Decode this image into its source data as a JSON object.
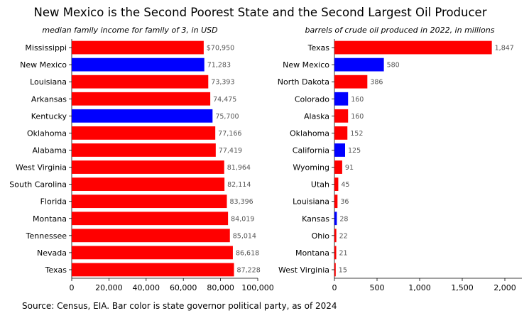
{
  "title": "New Mexico is the Second Poorest State and the Second Largest Oil Producer",
  "source": "Source: Census, EIA. Bar color is state governor political party, as of 2024",
  "colors": {
    "republican": "#ff0000",
    "democrat": "#0000ff"
  },
  "chart_data": [
    {
      "type": "bar",
      "orientation": "horizontal",
      "subtitle": "median family income for family of 3, in USD",
      "categories": [
        "Mississippi",
        "New Mexico",
        "Louisiana",
        "Arkansas",
        "Kentucky",
        "Oklahoma",
        "Alabama",
        "West Virginia",
        "South Carolina",
        "Florida",
        "Montana",
        "Tennessee",
        "Nevada",
        "Texas"
      ],
      "values": [
        70950,
        71283,
        73393,
        74475,
        75700,
        77166,
        77419,
        81964,
        82114,
        83396,
        84019,
        85014,
        86618,
        87228
      ],
      "value_labels": [
        "$70,950",
        "71,283",
        "73,393",
        "74,475",
        "75,700",
        "77,166",
        "77,419",
        "81,964",
        "82,114",
        "83,396",
        "84,019",
        "85,014",
        "86,618",
        "87,228"
      ],
      "party": [
        "R",
        "D",
        "R",
        "R",
        "D",
        "R",
        "R",
        "R",
        "R",
        "R",
        "R",
        "R",
        "R",
        "R"
      ],
      "xlim": [
        0,
        100000
      ],
      "xticks": [
        0,
        20000,
        40000,
        60000,
        80000,
        100000
      ],
      "xtick_labels": [
        "0",
        "20,000",
        "40,000",
        "60,000",
        "80,000",
        "100,000"
      ]
    },
    {
      "type": "bar",
      "orientation": "horizontal",
      "subtitle": "barrels of crude oil produced in 2022, in millions",
      "categories": [
        "Texas",
        "New Mexico",
        "North Dakota",
        "Colorado",
        "Alaska",
        "Oklahoma",
        "California",
        "Wyoming",
        "Utah",
        "Louisiana",
        "Kansas",
        "Ohio",
        "Montana",
        "West Virginia"
      ],
      "values": [
        1847,
        580,
        386,
        160,
        160,
        152,
        125,
        91,
        45,
        36,
        28,
        22,
        21,
        15
      ],
      "value_labels": [
        "1,847",
        "580",
        "386",
        "160",
        "160",
        "152",
        "125",
        "91",
        "45",
        "36",
        "28",
        "22",
        "21",
        "15"
      ],
      "party": [
        "R",
        "D",
        "R",
        "D",
        "R",
        "R",
        "D",
        "R",
        "R",
        "R",
        "D",
        "R",
        "R",
        "R"
      ],
      "xlim": [
        0,
        2200
      ],
      "xticks": [
        0,
        500,
        1000,
        1500,
        2000
      ],
      "xtick_labels": [
        "0",
        "500",
        "1,000",
        "1,500",
        "2,000"
      ]
    }
  ]
}
